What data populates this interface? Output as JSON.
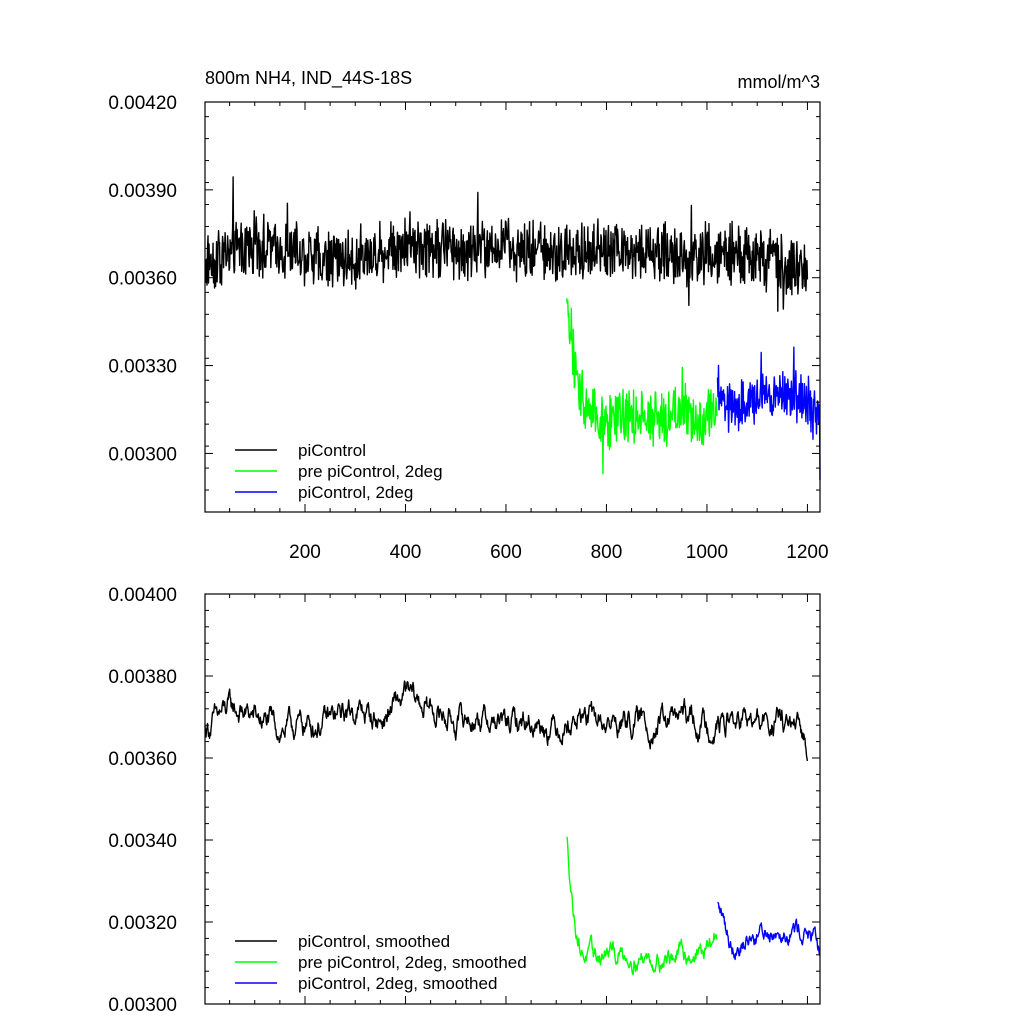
{
  "chart_data": [
    {
      "type": "line",
      "title": "800m NH4, IND_44S-18S",
      "units": "mmol/m^3",
      "xlim": [
        1,
        1225
      ],
      "ylim": [
        0.0028,
        0.0042
      ],
      "xticks": [
        200,
        400,
        600,
        800,
        1000,
        1200
      ],
      "xtick_labels": [
        "200",
        "400",
        "600",
        "800",
        "1000",
        "1200"
      ],
      "yticks": [
        0.003,
        0.0033,
        0.0036,
        0.0039,
        0.0042
      ],
      "ytick_labels": [
        "0.00300",
        "0.00330",
        "0.00360",
        "0.00390",
        "0.00420"
      ],
      "legend_position": "bottom-left",
      "series": [
        {
          "name": "piControl",
          "color": "#000000",
          "x_start": 1,
          "x_end": 1200,
          "mean": 0.00369,
          "amplitude": 0.00011,
          "x": [
            1,
            100,
            200,
            300,
            400,
            500,
            600,
            700,
            800,
            900,
            1000,
            1100,
            1200
          ],
          "values": [
            0.00365,
            0.00372,
            0.00368,
            0.00366,
            0.00372,
            0.0037,
            0.0037,
            0.00369,
            0.0037,
            0.00368,
            0.00368,
            0.00367,
            0.00362
          ]
        },
        {
          "name": "pre piControl, 2deg",
          "color": "#00ff00",
          "x_start": 721,
          "x_end": 1020,
          "mean": 0.00313,
          "amplitude": 0.0001,
          "x": [
            721,
            740,
            760,
            800,
            850,
            900,
            950,
            1000,
            1020
          ],
          "values": [
            0.00353,
            0.00325,
            0.00316,
            0.00311,
            0.00312,
            0.00312,
            0.00313,
            0.00313,
            0.00315
          ]
        },
        {
          "name": "piControl, 2deg",
          "color": "#0000ff",
          "x_start": 1021,
          "x_end": 1225,
          "mean": 0.00318,
          "amplitude": 0.0001,
          "x": [
            1021,
            1050,
            1100,
            1150,
            1200,
            1225
          ],
          "values": [
            0.0032,
            0.00316,
            0.00318,
            0.0032,
            0.00318,
            0.00312
          ]
        }
      ]
    },
    {
      "type": "line",
      "title": "",
      "xlim": [
        1,
        1225
      ],
      "ylim": [
        0.003,
        0.004
      ],
      "xticks": [
        200,
        400,
        600,
        800,
        1000,
        1200
      ],
      "yticks": [
        0.003,
        0.0032,
        0.0034,
        0.0036,
        0.0038,
        0.004
      ],
      "ytick_labels": [
        "0.00300",
        "0.00320",
        "0.00340",
        "0.00360",
        "0.00380",
        "0.00400"
      ],
      "legend_position": "bottom-left",
      "series": [
        {
          "name": "piControl, smoothed",
          "color": "#000000",
          "x_start": 1,
          "x_end": 1200,
          "mean": 0.00369,
          "amplitude": 5e-05,
          "x": [
            1,
            50,
            100,
            150,
            200,
            250,
            300,
            350,
            400,
            450,
            500,
            550,
            600,
            650,
            700,
            750,
            800,
            850,
            900,
            950,
            1000,
            1050,
            1100,
            1150,
            1200
          ],
          "values": [
            0.00367,
            0.00372,
            0.0037,
            0.00367,
            0.00368,
            0.00369,
            0.00372,
            0.00369,
            0.00375,
            0.00372,
            0.00369,
            0.0037,
            0.00368,
            0.00369,
            0.00368,
            0.0037,
            0.00368,
            0.00369,
            0.00368,
            0.0037,
            0.00368,
            0.00369,
            0.00368,
            0.00369,
            0.00363
          ]
        },
        {
          "name": "pre piControl, 2deg, smoothed",
          "color": "#00ff00",
          "x_start": 721,
          "x_end": 1020,
          "mean": 0.00312,
          "amplitude": 4e-05,
          "x": [
            721,
            735,
            750,
            775,
            800,
            850,
            900,
            950,
            1000,
            1020
          ],
          "values": [
            0.0034,
            0.00322,
            0.00313,
            0.00311,
            0.00312,
            0.00312,
            0.00311,
            0.00312,
            0.00313,
            0.00317
          ]
        },
        {
          "name": "piControl, 2deg, smoothed",
          "color": "#0000ff",
          "x_start": 1021,
          "x_end": 1225,
          "mean": 0.00317,
          "amplitude": 4e-05,
          "x": [
            1021,
            1050,
            1100,
            1150,
            1200,
            1225
          ],
          "values": [
            0.00324,
            0.00314,
            0.00317,
            0.00319,
            0.00318,
            0.00312
          ]
        }
      ]
    }
  ]
}
